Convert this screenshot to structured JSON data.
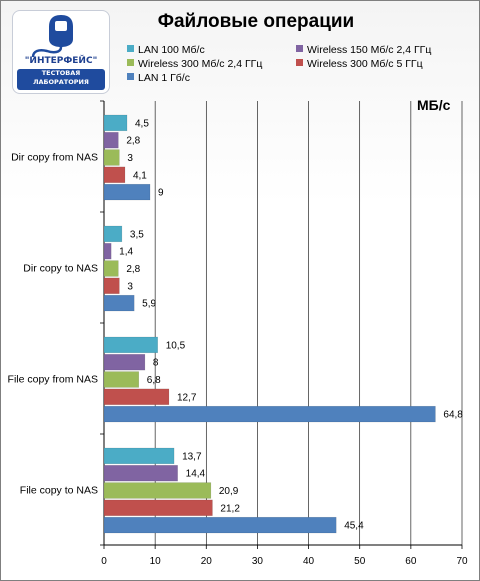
{
  "logo": {
    "name": "\"ИНТЕРФЕЙС\"",
    "line1": "ТЕСТОВАЯ",
    "line2": "ЛАБОРАТОРИЯ"
  },
  "chart_data": {
    "type": "bar",
    "orientation": "horizontal",
    "title": "Файловые операции",
    "unit_label": "МБ/с",
    "categories": [
      "Dir copy from NAS",
      "Dir copy to NAS",
      "File copy from NAS",
      "File copy to NAS"
    ],
    "series": [
      {
        "name": "LAN 100 Мб/с",
        "color": "#4bacc6",
        "values": [
          4.5,
          3.5,
          10.5,
          13.7
        ],
        "labels": [
          "4,5",
          "3,5",
          "10,5",
          "13,7"
        ]
      },
      {
        "name": "Wireless 150 Мб/с  2,4 ГГц",
        "color": "#8064a2",
        "values": [
          2.8,
          1.4,
          8,
          14.4
        ],
        "labels": [
          "2,8",
          "1,4",
          "8",
          "14,4"
        ]
      },
      {
        "name": "Wireless 300 Мб/с  2,4 ГГц",
        "color": "#9bbb59",
        "values": [
          3,
          2.8,
          6.8,
          20.9
        ],
        "labels": [
          "3",
          "2,8",
          "6,8",
          "20,9"
        ]
      },
      {
        "name": "Wireless 300 Мб/с  5 ГГц",
        "color": "#c0504d",
        "values": [
          4.1,
          3,
          12.7,
          21.2
        ],
        "labels": [
          "4,1",
          "3",
          "12,7",
          "21,2"
        ]
      },
      {
        "name": "LAN 1 Гб/с",
        "color": "#4f81bd",
        "values": [
          9,
          5.9,
          64.8,
          45.4
        ],
        "labels": [
          "9",
          "5,9",
          "64,8",
          "45,4"
        ]
      }
    ],
    "xlim": [
      0,
      70
    ],
    "xticks": [
      "0",
      "10",
      "20",
      "30",
      "40",
      "50",
      "60",
      "70"
    ],
    "grid": "vertical",
    "legend_position": "top"
  }
}
